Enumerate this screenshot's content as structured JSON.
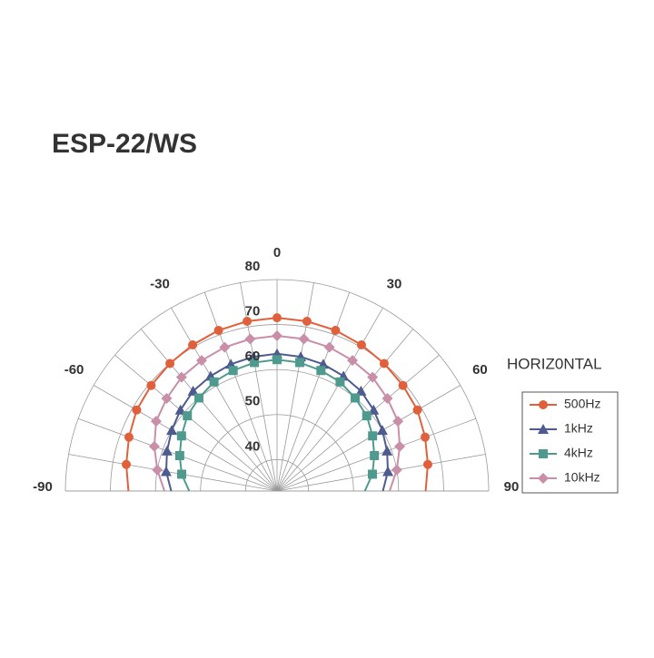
{
  "chart_data": {
    "type": "polar-half",
    "title": "ESP-22/WS",
    "subtitle": "HORIZ0NTAL",
    "x": [
      -90,
      -80,
      -70,
      -60,
      -50,
      -40,
      -30,
      -20,
      -10,
      0,
      10,
      20,
      30,
      40,
      50,
      60,
      70,
      80,
      90
    ],
    "xticks": [
      -90,
      -60,
      -30,
      0,
      30,
      60,
      90
    ],
    "ylim": [
      33,
      80
    ],
    "yticks": [
      40,
      50,
      60,
      70,
      80
    ],
    "grid": true,
    "legend": "right",
    "series": [
      {
        "name": "500Hz",
        "color": "#e0603c",
        "marker": "circle",
        "values": [
          66,
          67,
          68,
          69,
          69.5,
          70,
          70.5,
          71,
          71.3,
          71.5,
          71.3,
          71,
          70.5,
          70,
          69.5,
          69,
          68,
          67,
          66
        ]
      },
      {
        "name": "1kHz",
        "color": "#4e5b8f",
        "marker": "triangle",
        "values": [
          56.5,
          58,
          59,
          60,
          61,
          62,
          62.5,
          63,
          63.3,
          63.5,
          63.3,
          63,
          62.5,
          62,
          61,
          60,
          59,
          58,
          56.5
        ]
      },
      {
        "name": "4kHz",
        "color": "#4e9a8e",
        "marker": "square",
        "values": [
          52.5,
          54.5,
          56,
          57.5,
          59,
          60,
          61,
          61.5,
          62,
          62.2,
          62,
          61.5,
          61,
          60,
          59,
          57.5,
          56,
          54.5,
          52.5
        ]
      },
      {
        "name": "10kHz",
        "color": "#c98fa8",
        "marker": "diamond",
        "values": [
          58,
          60,
          62,
          64,
          65,
          66,
          66.5,
          67,
          67.3,
          67.5,
          67.3,
          67,
          66.5,
          66,
          65,
          64,
          62,
          60,
          58
        ]
      }
    ]
  }
}
